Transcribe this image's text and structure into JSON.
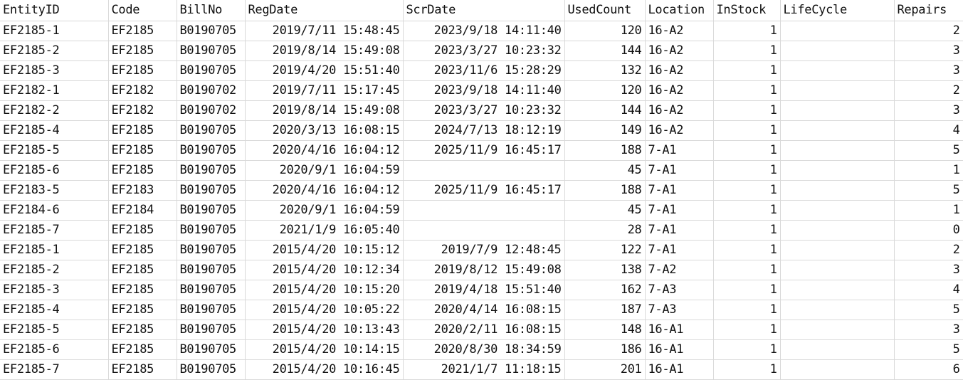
{
  "columns": [
    "EntityID",
    "Code",
    "BillNo",
    "RegDate",
    "ScrDate",
    "UsedCount",
    "Location",
    "InStock",
    "LifeCycle",
    "Repairs"
  ],
  "rows": [
    [
      "EF2185-1",
      "EF2185",
      "B0190705",
      "2019/7/11  15:48:45",
      "2023/9/18  14:11:40",
      "120",
      "16-A2",
      "1",
      "",
      "2"
    ],
    [
      "EF2185-2",
      "EF2185",
      "B0190705",
      "2019/8/14  15:49:08",
      "2023/3/27  10:23:32",
      "144",
      "16-A2",
      "1",
      "",
      "3"
    ],
    [
      "EF2185-3",
      "EF2185",
      "B0190705",
      "2019/4/20  15:51:40",
      "2023/11/6  15:28:29",
      "132",
      "16-A2",
      "1",
      "",
      "3"
    ],
    [
      "EF2182-1",
      "EF2182",
      "B0190702",
      "2019/7/11  15:17:45",
      "2023/9/18  14:11:40",
      "120",
      "16-A2",
      "1",
      "",
      "2"
    ],
    [
      "EF2182-2",
      "EF2182",
      "B0190702",
      "2019/8/14  15:49:08",
      "2023/3/27  10:23:32",
      "144",
      "16-A2",
      "1",
      "",
      "3"
    ],
    [
      "EF2185-4",
      "EF2185",
      "B0190705",
      "2020/3/13  16:08:15",
      "2024/7/13  18:12:19",
      "149",
      "16-A2",
      "1",
      "",
      "4"
    ],
    [
      "EF2185-5",
      "EF2185",
      "B0190705",
      "2020/4/16  16:04:12",
      "2025/11/9  16:45:17",
      "188",
      "7-A1",
      "1",
      "",
      "5"
    ],
    [
      "EF2185-6",
      "EF2185",
      "B0190705",
      "2020/9/1  16:04:59",
      "",
      "45",
      "7-A1",
      "1",
      "",
      "1"
    ],
    [
      "EF2183-5",
      "EF2183",
      "B0190705",
      "2020/4/16  16:04:12",
      "2025/11/9  16:45:17",
      "188",
      "7-A1",
      "1",
      "",
      "5"
    ],
    [
      "EF2184-6",
      "EF2184",
      "B0190705",
      "2020/9/1  16:04:59",
      "",
      "45",
      "7-A1",
      "1",
      "",
      "1"
    ],
    [
      "EF2185-7",
      "EF2185",
      "B0190705",
      "2021/1/9  16:05:40",
      "",
      "28",
      "7-A1",
      "1",
      "",
      "0"
    ],
    [
      "EF2185-1",
      "EF2185",
      "B0190705",
      "2015/4/20  10:15:12",
      "2019/7/9  12:48:45",
      "122",
      "7-A1",
      "1",
      "",
      "2"
    ],
    [
      "EF2185-2",
      "EF2185",
      "B0190705",
      "2015/4/20  10:12:34",
      "2019/8/12  15:49:08",
      "138",
      "7-A2",
      "1",
      "",
      "3"
    ],
    [
      "EF2185-3",
      "EF2185",
      "B0190705",
      "2015/4/20  10:15:20",
      "2019/4/18  15:51:40",
      "162",
      "7-A3",
      "1",
      "",
      "4"
    ],
    [
      "EF2185-4",
      "EF2185",
      "B0190705",
      "2015/4/20  10:05:22",
      "2020/4/14  16:08:15",
      "187",
      "7-A3",
      "1",
      "",
      "5"
    ],
    [
      "EF2185-5",
      "EF2185",
      "B0190705",
      "2015/4/20  10:13:43",
      "2020/2/11  16:08:15",
      "148",
      "16-A1",
      "1",
      "",
      "3"
    ],
    [
      "EF2185-6",
      "EF2185",
      "B0190705",
      "2015/4/20  10:14:15",
      "2020/8/30  18:34:59",
      "186",
      "16-A1",
      "1",
      "",
      "5"
    ],
    [
      "EF2185-7",
      "EF2185",
      "B0190705",
      "2015/4/20  10:16:45",
      "2021/1/7  11:18:15",
      "201",
      "16-A1",
      "1",
      "",
      "6"
    ]
  ]
}
